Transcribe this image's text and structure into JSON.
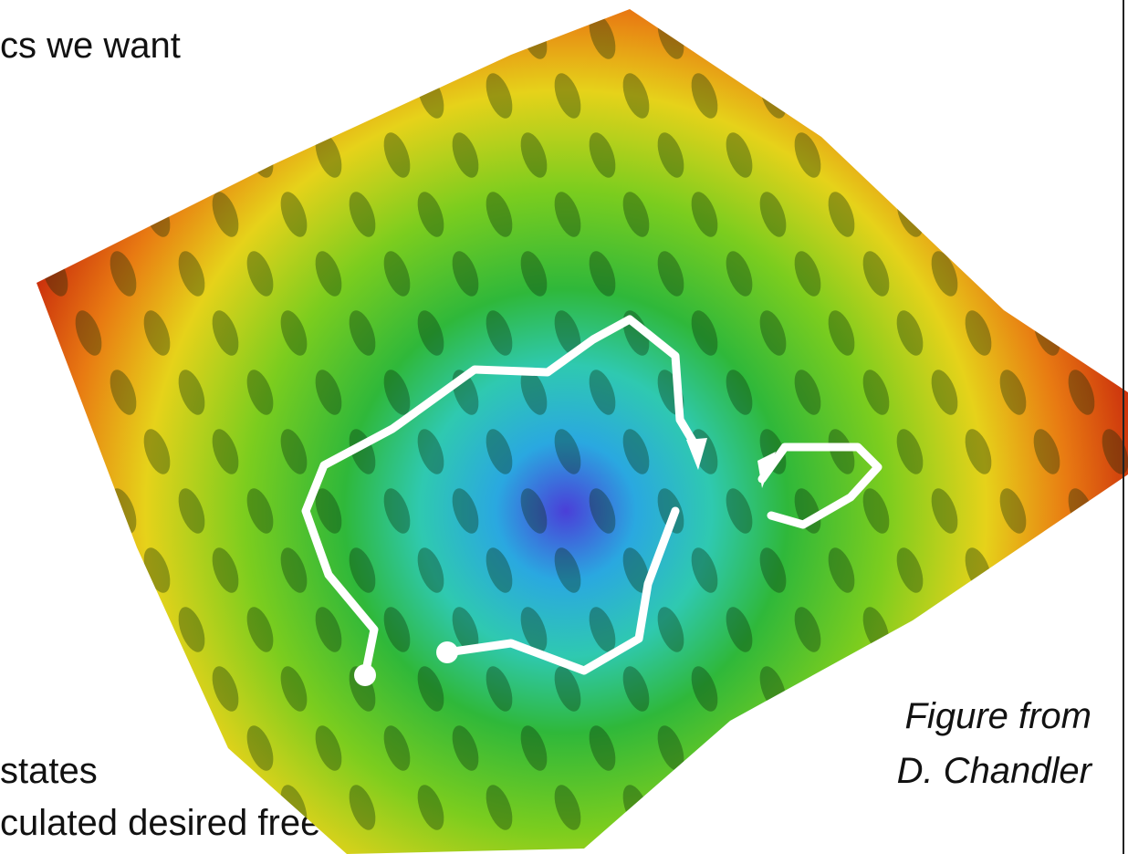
{
  "slide": {
    "text_lines": [
      "cs we want",
      "states",
      "culated desired free energy"
    ],
    "caption": [
      "Figure from",
      "D. Chandler"
    ]
  }
}
